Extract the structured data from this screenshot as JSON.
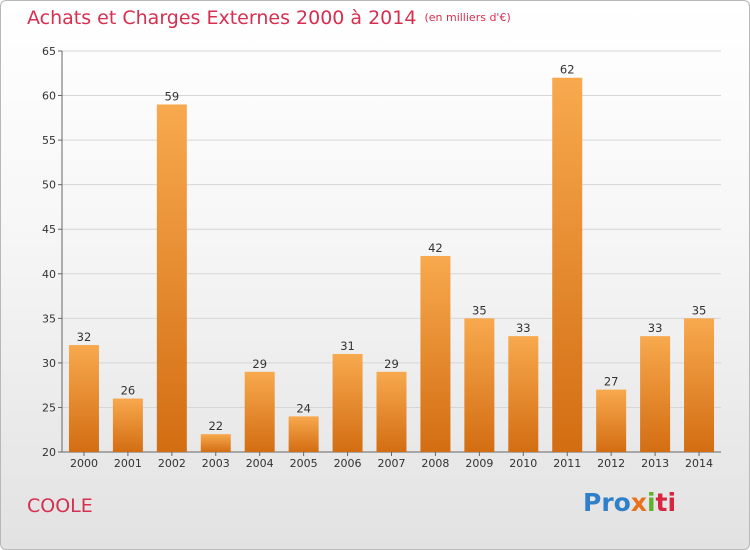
{
  "header": {
    "title": "Achats et Charges Externes 2000 à 2014",
    "subtitle": "(en milliers d'€)"
  },
  "footer": {
    "location": "COOLE",
    "logo": [
      "Pro",
      "x",
      "i",
      "ti"
    ]
  },
  "colors": {
    "title": "#d62f4f",
    "bar_light": "#f8a94e",
    "bar_dark": "#d36d12",
    "grid": "#d6d6d6"
  },
  "chart_data": {
    "type": "bar",
    "title": "Achats et Charges Externes 2000 à 2014",
    "subtitle": "(en milliers d'€)",
    "categories": [
      "2000",
      "2001",
      "2002",
      "2003",
      "2004",
      "2005",
      "2006",
      "2007",
      "2008",
      "2009",
      "2010",
      "2011",
      "2012",
      "2013",
      "2014"
    ],
    "values": [
      32,
      26,
      59,
      22,
      29,
      24,
      31,
      29,
      42,
      35,
      33,
      62,
      27,
      33,
      35
    ],
    "ylim": [
      20,
      65
    ],
    "yticks": [
      20,
      25,
      30,
      35,
      40,
      45,
      50,
      55,
      60,
      65
    ],
    "grid": true,
    "xlabel": "",
    "ylabel": ""
  }
}
